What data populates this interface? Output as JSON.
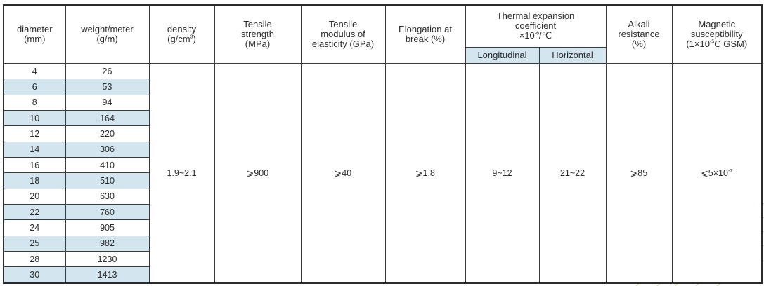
{
  "headers": {
    "diameter": [
      "diameter",
      "(mm)"
    ],
    "weight": [
      "weight/meter",
      "(g/m)"
    ],
    "density": [
      "density",
      "(g/cm",
      "3",
      ")"
    ],
    "tensile_strength": [
      "Tensile",
      "strength",
      "(MPa)"
    ],
    "tensile_modulus": [
      "Tensile",
      "modulus of",
      "elasticity (GPa)"
    ],
    "elongation": [
      "Elongation at",
      "break (%)"
    ],
    "thermal": [
      "Thermal expansion",
      "coefficient",
      "×10",
      "-6",
      "/℃"
    ],
    "thermal_longitudinal": "Longitudinal",
    "thermal_horizontal": "Horizontal",
    "alkali": [
      "Alkali",
      "resistance",
      "(%)"
    ],
    "magnetic": [
      "Magnetic",
      "susceptibility",
      "(1×10",
      "-5",
      "C GSM)"
    ]
  },
  "rows": [
    {
      "diameter": "4",
      "weight": "26"
    },
    {
      "diameter": "6",
      "weight": "53"
    },
    {
      "diameter": "8",
      "weight": "94"
    },
    {
      "diameter": "10",
      "weight": "164"
    },
    {
      "diameter": "12",
      "weight": "220"
    },
    {
      "diameter": "14",
      "weight": "306"
    },
    {
      "diameter": "16",
      "weight": "410"
    },
    {
      "diameter": "18",
      "weight": "510"
    },
    {
      "diameter": "20",
      "weight": "630"
    },
    {
      "diameter": "22",
      "weight": "760"
    },
    {
      "diameter": "24",
      "weight": "905"
    },
    {
      "diameter": "25",
      "weight": "982"
    },
    {
      "diameter": "28",
      "weight": "1230"
    },
    {
      "diameter": "30",
      "weight": "1413"
    }
  ],
  "values": {
    "density": "1.9~2.1",
    "tensile_strength": "⩾900",
    "tensile_modulus": "⩾40",
    "elongation": "⩾1.8",
    "thermal_longitudinal": "9~12",
    "thermal_horizontal": "21~22",
    "alkali": "⩾85",
    "magnetic_base": "⩽5×10",
    "magnetic_exp": "-7"
  },
  "colors": {
    "accent_fill": "#d3e6f0",
    "border": "#3a3a3a",
    "deco_line": "#d9cfa6"
  }
}
